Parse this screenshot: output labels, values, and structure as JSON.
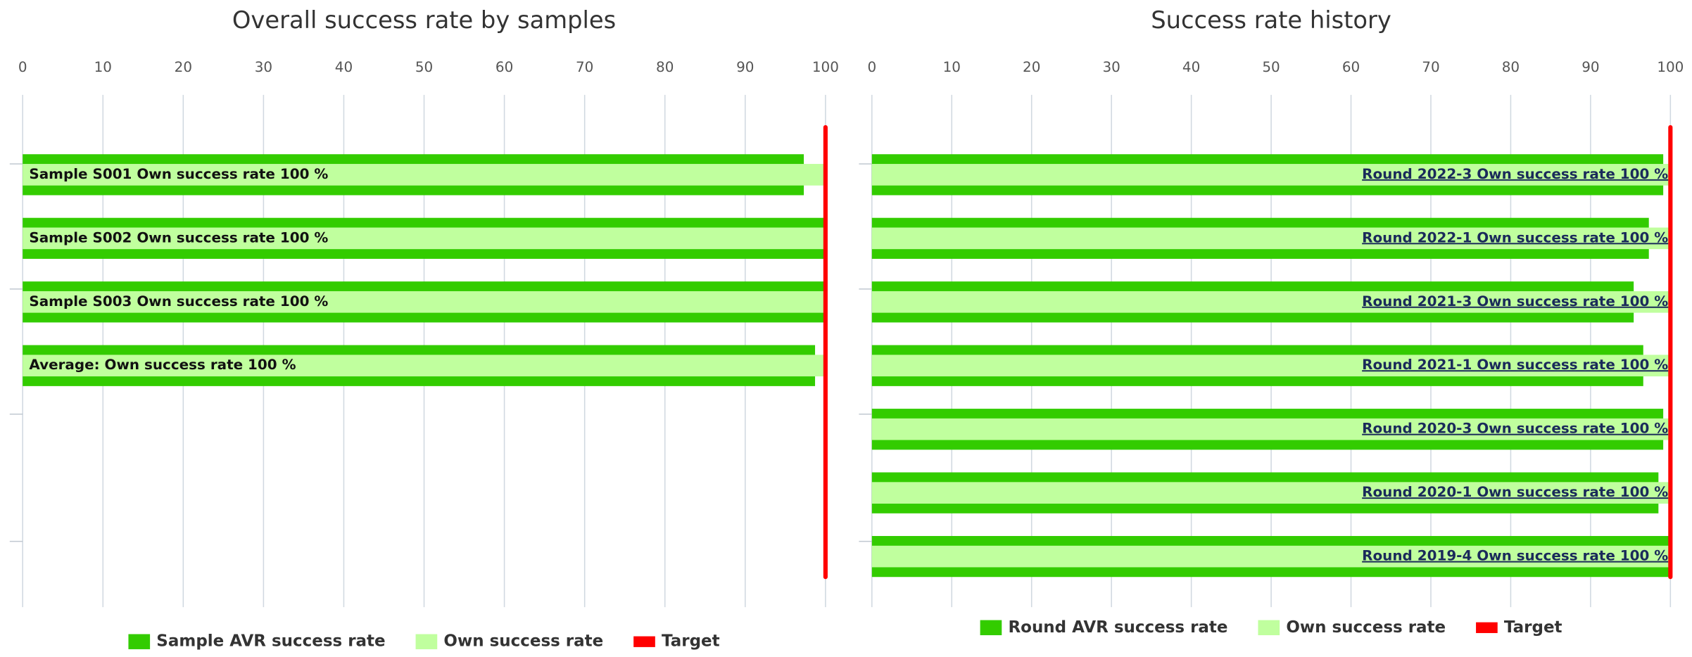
{
  "chart_data": [
    {
      "type": "bar",
      "orientation": "horizontal",
      "title": "Overall success rate by samples",
      "xlim": [
        0,
        100
      ],
      "xticks": [
        0,
        10,
        20,
        30,
        40,
        50,
        60,
        70,
        80,
        90,
        100
      ],
      "grid": true,
      "label_position": "start",
      "series": [
        {
          "name": "Sample AVR success rate",
          "color": "#33cc00",
          "values": [
            97.3,
            100,
            100,
            98.7
          ]
        },
        {
          "name": "Own success rate",
          "color": "#c0ff9e",
          "values": [
            100,
            100,
            100,
            100
          ],
          "value_labels": [
            "Sample S001 Own success rate 100 %",
            "Sample S002 Own success rate 100 %",
            "Sample S003 Own success rate 100 %",
            "Average: Own success rate 100 %"
          ]
        }
      ],
      "target": {
        "name": "Target",
        "color": "#ff0000",
        "value": 100
      }
    },
    {
      "type": "bar",
      "orientation": "horizontal",
      "title": "Success rate history",
      "xlim": [
        0,
        100
      ],
      "xticks": [
        0,
        10,
        20,
        30,
        40,
        50,
        60,
        70,
        80,
        90,
        100
      ],
      "grid": true,
      "label_position": "end",
      "series": [
        {
          "name": "Round AVR success rate",
          "color": "#33cc00",
          "values": [
            99.1,
            97.3,
            95.4,
            96.6,
            99.1,
            98.5,
            100
          ]
        },
        {
          "name": "Own success rate",
          "color": "#c0ff9e",
          "values": [
            100,
            100,
            100,
            100,
            100,
            100,
            100
          ],
          "value_labels": [
            "Round 2022-3 Own success rate 100 %",
            "Round 2022-1 Own success rate 100 %",
            "Round 2021-3 Own success rate 100 %",
            "Round 2021-1 Own success rate 100 %",
            "Round 2020-3 Own success rate 100 %",
            "Round 2020-1 Own success rate 100 %",
            "Round 2019-4 Own success rate 100 %"
          ]
        }
      ],
      "target": {
        "name": "Target",
        "color": "#ff0000",
        "value": 100
      }
    }
  ]
}
